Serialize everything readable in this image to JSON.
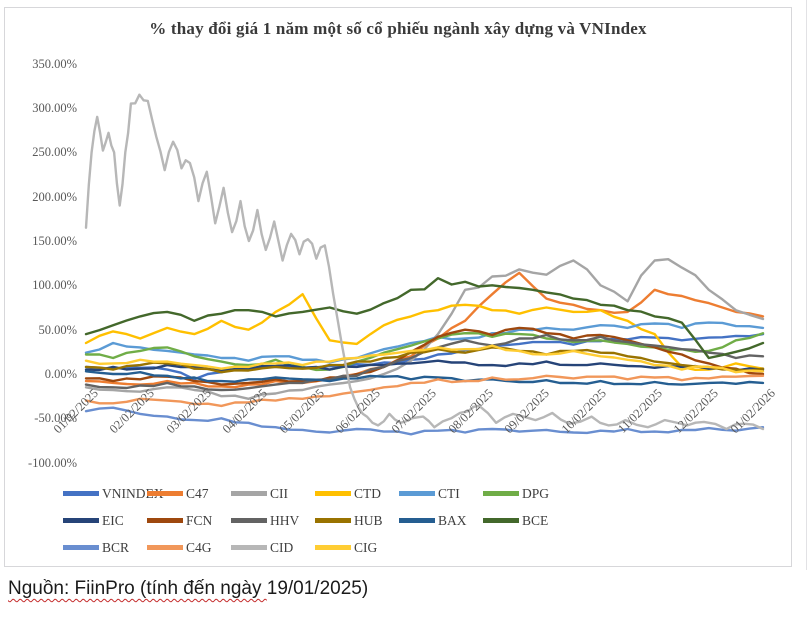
{
  "chart_card": {
    "title": "% thay đổi giá 1 năm một số cổ phiếu ngành xây dựng và VNIndex",
    "title_color": "#3a3a3a",
    "border_color": "#d7d7da"
  },
  "footer": {
    "source_wavy": "Nguồn: FiinPro (tính đến ngày ",
    "source_plain": "19/01/2025)"
  },
  "chart_data": {
    "type": "line",
    "title": "% thay đổi giá 1 năm một số cổ phiếu ngành xây dựng và VNIndex",
    "xlabel": "",
    "ylabel": "",
    "grid": false,
    "legend_position": "bottom",
    "axis_label_color": "#595959",
    "x_span_months": 12.05,
    "x_axis": {
      "tick_labels": [
        "01/02/2025",
        "02/02/2025",
        "03/02/2025",
        "04/02/2025",
        "05/02/2025",
        "06/02/2025",
        "07/02/2025",
        "08/02/2025",
        "09/02/2025",
        "10/02/2025",
        "11/02/2025",
        "12/02/2025",
        "01/02/2026"
      ]
    },
    "y_axis": {
      "min": -100,
      "max": 350,
      "unit": "%",
      "ticks": [
        {
          "value": 350,
          "label": "350.00%"
        },
        {
          "value": 300,
          "label": "300.00%"
        },
        {
          "value": 250,
          "label": "250.00%"
        },
        {
          "value": 200,
          "label": "200.00%"
        },
        {
          "value": 150,
          "label": "150.00%"
        },
        {
          "value": 100,
          "label": "100.00%"
        },
        {
          "value": 50,
          "label": "50.00%"
        },
        {
          "value": 0,
          "label": "0.00%"
        },
        {
          "value": -50,
          "label": "-50.00%"
        },
        {
          "value": -100,
          "label": "-100.00%"
        }
      ]
    },
    "series": [
      {
        "name": "VNINDEX",
        "color": "#4472C4",
        "values": [
          8,
          6,
          7,
          5,
          -6,
          2,
          6,
          8,
          7,
          9,
          11,
          13,
          16,
          22,
          27,
          31,
          34,
          36,
          33,
          37,
          39,
          41,
          38,
          41,
          43,
          45
        ]
      },
      {
        "name": "C47",
        "color": "#ED7D31",
        "values": [
          -8,
          -10,
          -12,
          -8,
          -10,
          -14,
          -12,
          -8,
          -10,
          -6,
          0,
          8,
          20,
          40,
          60,
          90,
          114,
          85,
          78,
          72,
          70,
          95,
          88,
          80,
          70,
          65
        ]
      },
      {
        "name": "CII",
        "color": "#A5A5A5",
        "values": [
          -15,
          -18,
          -20,
          -15,
          -18,
          -25,
          -28,
          -22,
          -18,
          -12,
          -8,
          0,
          15,
          45,
          95,
          110,
          118,
          112,
          128,
          100,
          82,
          128,
          120,
          95,
          72,
          62
        ]
      },
      {
        "name": "CTD",
        "color": "#FFC000",
        "values": [
          35,
          48,
          40,
          52,
          45,
          60,
          50,
          70,
          90,
          38,
          34,
          55,
          65,
          72,
          78,
          72,
          68,
          75,
          70,
          72,
          60,
          45,
          8,
          5,
          12,
          6
        ]
      },
      {
        "name": "CTI",
        "color": "#5B9BD5",
        "values": [
          24,
          35,
          30,
          26,
          22,
          18,
          15,
          20,
          16,
          13,
          18,
          28,
          35,
          42,
          40,
          46,
          50,
          52,
          50,
          55,
          52,
          57,
          52,
          58,
          54,
          52
        ]
      },
      {
        "name": "DPG",
        "color": "#70AD47",
        "values": [
          22,
          18,
          26,
          30,
          20,
          14,
          10,
          16,
          8,
          5,
          14,
          24,
          32,
          40,
          46,
          42,
          45,
          40,
          36,
          38,
          34,
          30,
          28,
          26,
          38,
          46
        ]
      },
      {
        "name": "EIC",
        "color": "#264478",
        "values": [
          5,
          8,
          6,
          10,
          8,
          4,
          6,
          9,
          7,
          5,
          8,
          10,
          12,
          15,
          13,
          10,
          12,
          14,
          10,
          12,
          9,
          7,
          8,
          6,
          4,
          5
        ]
      },
      {
        "name": "FCN",
        "color": "#9E480E",
        "values": [
          -5,
          -8,
          -6,
          -3,
          -8,
          -12,
          -10,
          -6,
          -8,
          -4,
          0,
          8,
          25,
          42,
          50,
          44,
          52,
          46,
          40,
          44,
          38,
          30,
          22,
          12,
          6,
          0
        ]
      },
      {
        "name": "HHV",
        "color": "#636363",
        "values": [
          -12,
          -15,
          -13,
          -10,
          -14,
          -18,
          -16,
          -12,
          -10,
          -6,
          -2,
          8,
          18,
          30,
          38,
          32,
          40,
          44,
          38,
          42,
          36,
          32,
          28,
          24,
          18,
          20
        ]
      },
      {
        "name": "HUB",
        "color": "#997300",
        "values": [
          8,
          5,
          10,
          12,
          6,
          2,
          4,
          8,
          6,
          10,
          14,
          18,
          24,
          28,
          24,
          30,
          26,
          22,
          26,
          24,
          20,
          14,
          10,
          8,
          5,
          6
        ]
      },
      {
        "name": "BAX",
        "color": "#255E91",
        "values": [
          3,
          0,
          2,
          -2,
          -4,
          -8,
          -6,
          -4,
          -6,
          -8,
          -5,
          -3,
          -6,
          -4,
          -8,
          -6,
          -9,
          -7,
          -10,
          -8,
          -11,
          -9,
          -12,
          -10,
          -11,
          -10
        ]
      },
      {
        "name": "BCE",
        "color": "#43682B",
        "values": [
          45,
          55,
          65,
          70,
          60,
          68,
          72,
          65,
          70,
          75,
          68,
          80,
          95,
          108,
          104,
          100,
          97,
          92,
          85,
          78,
          72,
          65,
          58,
          18,
          25,
          35
        ]
      },
      {
        "name": "BCR",
        "color": "#698ED0",
        "values": [
          -42,
          -38,
          -45,
          -48,
          -52,
          -50,
          -55,
          -60,
          -63,
          -66,
          -62,
          -65,
          -68,
          -64,
          -66,
          -62,
          -65,
          -63,
          -66,
          -64,
          -62,
          -65,
          -63,
          -61,
          -64,
          -60
        ]
      },
      {
        "name": "C4G",
        "color": "#F1975A",
        "values": [
          -30,
          -33,
          -28,
          -30,
          -34,
          -36,
          -32,
          -30,
          -28,
          -25,
          -20,
          -15,
          -10,
          -6,
          -8,
          -4,
          -6,
          -2,
          -5,
          -3,
          -6,
          -4,
          -7,
          -5,
          -3,
          -2
        ]
      },
      {
        "name": "CID",
        "color": "#B7B7B7",
        "points": [
          [
            0,
            165
          ],
          [
            0.1,
            250
          ],
          [
            0.2,
            290
          ],
          [
            0.3,
            252
          ],
          [
            0.4,
            272
          ],
          [
            0.5,
            250
          ],
          [
            0.6,
            190
          ],
          [
            0.7,
            250
          ],
          [
            0.8,
            305
          ],
          [
            0.95,
            315
          ],
          [
            1.1,
            308
          ],
          [
            1.25,
            268
          ],
          [
            1.4,
            230
          ],
          [
            1.55,
            262
          ],
          [
            1.7,
            232
          ],
          [
            1.85,
            238
          ],
          [
            2.0,
            195
          ],
          [
            2.15,
            228
          ],
          [
            2.3,
            170
          ],
          [
            2.45,
            210
          ],
          [
            2.6,
            160
          ],
          [
            2.75,
            195
          ],
          [
            2.9,
            150
          ],
          [
            3.05,
            185
          ],
          [
            3.2,
            140
          ],
          [
            3.35,
            172
          ],
          [
            3.5,
            128
          ],
          [
            3.65,
            158
          ],
          [
            3.8,
            135
          ],
          [
            3.95,
            152
          ],
          [
            4.1,
            130
          ],
          [
            4.25,
            145
          ],
          [
            4.4,
            90
          ],
          [
            4.55,
            35
          ],
          [
            4.7,
            -15
          ],
          [
            4.85,
            -38
          ],
          [
            5.0,
            -48
          ],
          [
            5.2,
            -58
          ],
          [
            5.4,
            -45
          ],
          [
            5.6,
            -55
          ],
          [
            5.8,
            -50
          ],
          [
            6.0,
            -48
          ],
          [
            6.2,
            -60
          ],
          [
            6.5,
            -50
          ],
          [
            6.8,
            -42
          ],
          [
            7.0,
            -36
          ],
          [
            7.3,
            -55
          ],
          [
            7.6,
            -45
          ],
          [
            8.0,
            -52
          ],
          [
            8.3,
            -44
          ],
          [
            8.6,
            -56
          ],
          [
            9.0,
            -48
          ],
          [
            9.3,
            -58
          ],
          [
            9.6,
            -52
          ],
          [
            10.0,
            -60
          ],
          [
            10.3,
            -52
          ],
          [
            10.7,
            -58
          ],
          [
            11.0,
            -54
          ],
          [
            11.4,
            -62
          ],
          [
            11.7,
            -56
          ],
          [
            12.05,
            -62
          ]
        ]
      },
      {
        "name": "CIG",
        "color": "#FFCD33",
        "values": [
          15,
          12,
          16,
          14,
          10,
          6,
          8,
          12,
          10,
          14,
          18,
          22,
          26,
          30,
          28,
          32,
          26,
          22,
          26,
          20,
          16,
          10,
          5,
          8,
          2,
          3
        ]
      }
    ]
  }
}
